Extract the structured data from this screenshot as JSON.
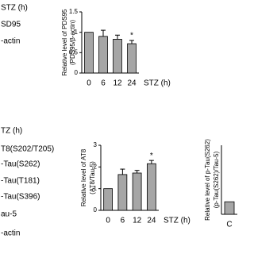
{
  "blots": [
    {
      "labels": [
        "STZ (h)",
        "SD95",
        "-actin"
      ]
    },
    {
      "labels": [
        "TZ (h)",
        "T8(S202/T205)",
        "-Tau(S262)",
        "-Tau(T181)",
        "-Tau(S396)",
        "au-5",
        "-actin"
      ]
    }
  ],
  "chart_data": [
    {
      "type": "bar",
      "ylabel": [
        "Relative level of PDS95",
        "(PDS95/β-actin)"
      ],
      "xlabel": "STZ (h)",
      "categories": [
        "0",
        "6",
        "12",
        "24"
      ],
      "values": [
        1.0,
        0.9,
        0.83,
        0.72
      ],
      "errors": [
        0,
        0.15,
        0.1,
        0.08
      ],
      "annotations": [
        null,
        null,
        null,
        "*"
      ],
      "color": "#a6a6a6",
      "ylim": [
        0,
        1.5
      ],
      "yticks": [
        0,
        0.5,
        1,
        1.5
      ]
    },
    {
      "type": "bar",
      "ylabel": [
        "Relative level of AT8",
        "(AT8/Tau-5)"
      ],
      "xlabel": "STZ (h)",
      "categories": [
        "0",
        "6",
        "12",
        "24"
      ],
      "values": [
        1.0,
        1.65,
        1.72,
        2.15
      ],
      "errors": [
        0,
        0.25,
        0.12,
        0.15
      ],
      "annotations": [
        null,
        null,
        null,
        "*"
      ],
      "color": "#a6a6a6",
      "ylim": [
        0,
        3
      ],
      "yticks": [
        0,
        1,
        2,
        3
      ]
    },
    {
      "type": "bar",
      "ylabel": [
        "Relative level of p-Tau(S262)",
        "(p-Tau(S262)/Tau-5)"
      ],
      "categories": [
        "C"
      ],
      "values": [
        1.0
      ],
      "errors": [
        0
      ],
      "annotations": [
        null
      ],
      "color": "#a6a6a6",
      "ylim": [
        0,
        5.5
      ],
      "yticks": []
    }
  ]
}
